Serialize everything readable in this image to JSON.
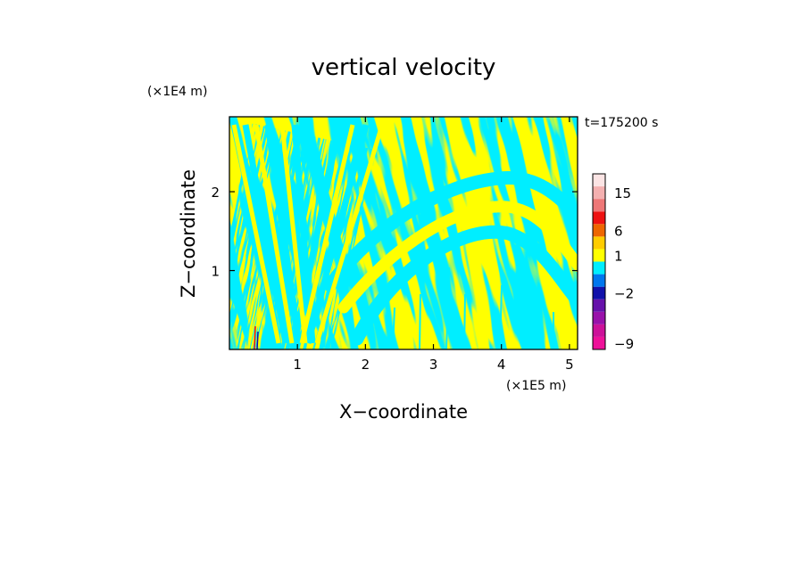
{
  "chart_data": {
    "type": "heatmap",
    "title": "vertical velocity",
    "xlabel": "X−coordinate",
    "ylabel": "Z−coordinate",
    "x_unit": "(×1E5 m)",
    "y_unit": "(×1E4 m)",
    "time_label": "t=175200 s",
    "xlim": [
      0,
      5.12
    ],
    "ylim": [
      0,
      2.95
    ],
    "x_ticks": [
      {
        "value": 1,
        "label": "1"
      },
      {
        "value": 2,
        "label": "2"
      },
      {
        "value": 3,
        "label": "3"
      },
      {
        "value": 4,
        "label": "4"
      },
      {
        "value": 5,
        "label": "5"
      }
    ],
    "y_ticks": [
      {
        "value": 1,
        "label": "1"
      },
      {
        "value": 2,
        "label": "2"
      }
    ],
    "colorbar": {
      "levels": [
        {
          "color": "#ee1199",
          "label": "−9"
        },
        {
          "color": "#cc1199",
          "label": ""
        },
        {
          "color": "#9911aa",
          "label": ""
        },
        {
          "color": "#6611aa",
          "label": ""
        },
        {
          "color": "#1111aa",
          "label": "−2"
        },
        {
          "color": "#0077ee",
          "label": ""
        },
        {
          "color": "#00eeff",
          "label": ""
        },
        {
          "color": "#ffff00",
          "label": "1"
        },
        {
          "color": "#ffcc00",
          "label": ""
        },
        {
          "color": "#ee6600",
          "label": "6"
        },
        {
          "color": "#ee1111",
          "label": ""
        },
        {
          "color": "#ee7777",
          "label": ""
        },
        {
          "color": "#f4b0b0",
          "label": "15"
        },
        {
          "color": "#fbe4e4",
          "label": ""
        }
      ]
    },
    "field_colors": {
      "positive": "#ffff00",
      "negative": "#00eeff"
    }
  }
}
